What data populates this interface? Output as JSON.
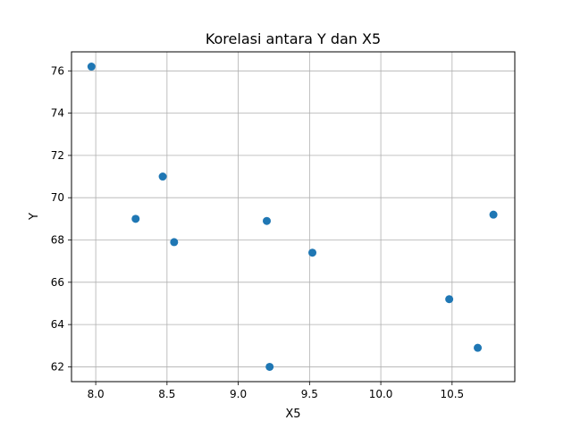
{
  "chart_data": {
    "type": "scatter",
    "title": "Korelasi antara Y dan X5",
    "xlabel": "X5",
    "ylabel": "Y",
    "xlim": [
      7.83,
      10.94
    ],
    "ylim": [
      61.3,
      76.9
    ],
    "x_ticks": [
      "8.0",
      "8.5",
      "9.0",
      "9.5",
      "10.0",
      "10.5"
    ],
    "y_ticks": [
      "62",
      "64",
      "66",
      "68",
      "70",
      "72",
      "74",
      "76"
    ],
    "grid": true,
    "marker_color": "#1f77b4",
    "points": [
      {
        "x": 7.97,
        "y": 76.2
      },
      {
        "x": 8.28,
        "y": 69.0
      },
      {
        "x": 8.47,
        "y": 71.0
      },
      {
        "x": 8.55,
        "y": 67.9
      },
      {
        "x": 9.2,
        "y": 68.9
      },
      {
        "x": 9.22,
        "y": 62.0
      },
      {
        "x": 9.52,
        "y": 67.4
      },
      {
        "x": 10.48,
        "y": 65.2
      },
      {
        "x": 10.68,
        "y": 62.9
      },
      {
        "x": 10.79,
        "y": 69.2
      }
    ]
  }
}
